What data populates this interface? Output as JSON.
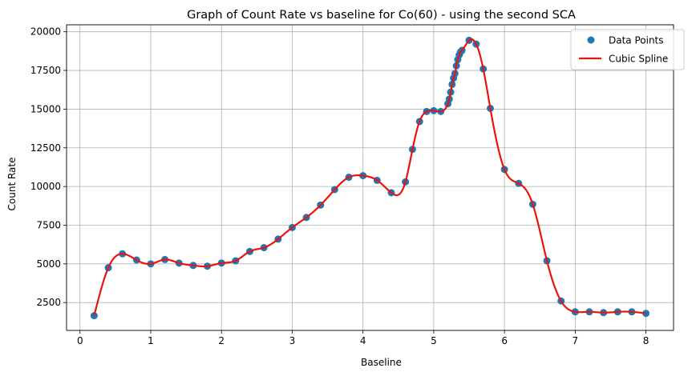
{
  "chart_data": {
    "type": "scatter",
    "title": "Graph of Count Rate vs baseline for Co(60) - using the second SCA",
    "xlabel": "Baseline",
    "ylabel": "Count Rate",
    "xlim": [
      -0.19,
      8.39
    ],
    "ylim": [
      700,
      20450
    ],
    "xticks": [
      0,
      1,
      2,
      3,
      4,
      5,
      6,
      7,
      8
    ],
    "yticks": [
      2500,
      5000,
      7500,
      10000,
      12500,
      15000,
      17500,
      20000
    ],
    "xtick_labels": [
      "0",
      "1",
      "2",
      "3",
      "4",
      "5",
      "6",
      "7",
      "8"
    ],
    "ytick_labels": [
      "2500",
      "5000",
      "7500",
      "10000",
      "12500",
      "15000",
      "17500",
      "20000"
    ],
    "grid": true,
    "legend_position": "top-right",
    "series": [
      {
        "name": "Data Points",
        "kind": "scatter",
        "color": "#1f77b4",
        "x": [
          0.2,
          0.4,
          0.6,
          0.8,
          1.0,
          1.2,
          1.4,
          1.6,
          1.8,
          2.0,
          2.2,
          2.4,
          2.6,
          2.8,
          3.0,
          3.2,
          3.4,
          3.6,
          3.8,
          4.0,
          4.2,
          4.4,
          4.6,
          4.7,
          4.8,
          4.9,
          5.0,
          5.1,
          5.2,
          5.22,
          5.24,
          5.26,
          5.28,
          5.3,
          5.32,
          5.34,
          5.36,
          5.38,
          5.4,
          5.5,
          5.6,
          5.7,
          5.8,
          6.0,
          6.2,
          6.4,
          6.6,
          6.8,
          7.0,
          7.2,
          7.4,
          7.6,
          7.8,
          8.0
        ],
        "y": [
          1650,
          4750,
          5650,
          5250,
          5000,
          5280,
          5050,
          4900,
          4850,
          5050,
          5200,
          5800,
          6050,
          6600,
          7350,
          8000,
          8800,
          9800,
          10600,
          10700,
          10400,
          9600,
          10300,
          12400,
          14200,
          14850,
          14900,
          14850,
          15350,
          15650,
          16100,
          16600,
          17000,
          17300,
          17800,
          18200,
          18500,
          18700,
          18800,
          19450,
          19200,
          17600,
          15050,
          11100,
          10200,
          8850,
          5200,
          2600,
          1900,
          1900,
          1850,
          1900,
          1900,
          1800
        ]
      },
      {
        "name": "Cubic Spline",
        "kind": "line",
        "color": "#e8140d"
      }
    ]
  }
}
